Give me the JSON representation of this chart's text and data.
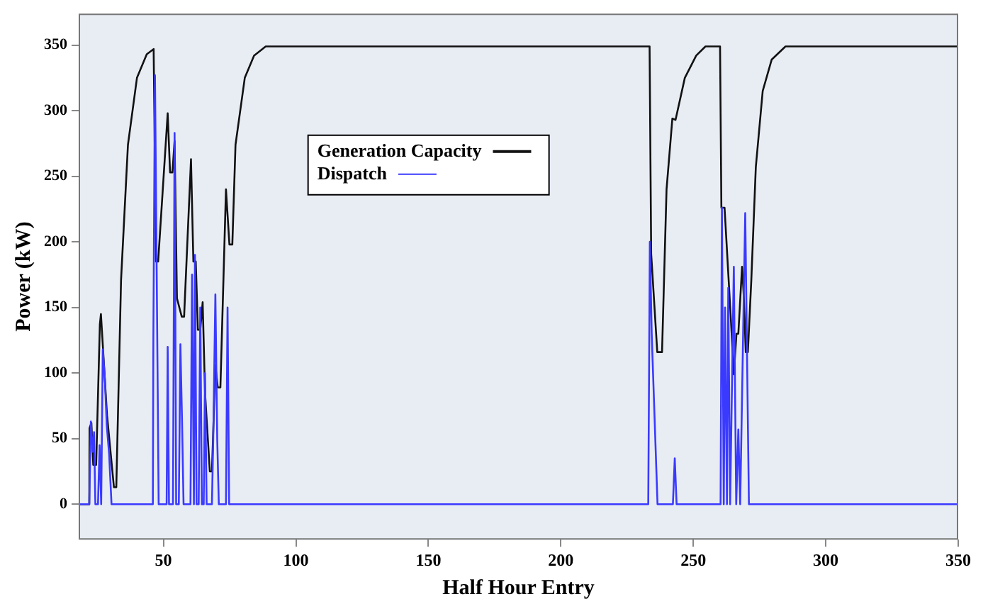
{
  "chart_data": {
    "type": "line",
    "xlabel": "Half Hour Entry",
    "ylabel": "Power (kW)",
    "xlim": [
      18,
      350
    ],
    "xticks": [
      50,
      100,
      150,
      200,
      250,
      300,
      350
    ],
    "ylim": [
      -27,
      374
    ],
    "yticks": [
      0,
      50,
      100,
      150,
      200,
      250,
      300,
      350
    ],
    "grid": false,
    "legend": "top left",
    "marker": "none",
    "line_style": "solid",
    "series": [
      {
        "name": "Generation Capacity",
        "color": "#111111",
        "x": [
          18,
          22,
          22.1,
          22.8,
          23.5,
          24.6,
          26,
          26.4,
          28.7,
          31.3,
          32.2,
          34,
          36.6,
          40,
          43.7,
          46.3,
          47.2,
          48,
          51.6,
          52.5,
          53.4,
          54.2,
          55.1,
          56.9,
          57.8,
          60.4,
          61.3,
          62.2,
          63,
          63.9,
          64.8,
          65.7,
          67.5,
          68.3,
          69.6,
          70.5,
          71.5,
          73.6,
          74.9,
          76,
          77.2,
          80.7,
          84.2,
          88.6,
          233.5,
          234.1,
          236.4,
          238.2,
          239.9,
          242.1,
          243.3,
          246.8,
          251.1,
          254.6,
          260.1,
          260.6,
          261.8,
          264.1,
          265.3,
          266.3,
          267,
          268.4,
          269.1,
          269.8,
          270.6,
          271.9,
          273.6,
          276.2,
          279.6,
          284.8,
          350
        ],
        "values": [
          0,
          0,
          58,
          62,
          30,
          30,
          137,
          145,
          68,
          13,
          13,
          171,
          274,
          325,
          343,
          347,
          185,
          185,
          298,
          253,
          253,
          277,
          157,
          143,
          143,
          263,
          185,
          185,
          133,
          133,
          154,
          85,
          25,
          25,
          106,
          89,
          89,
          240,
          198,
          198,
          274,
          325,
          342,
          349,
          349,
          191,
          116,
          116,
          240,
          294,
          293,
          325,
          342,
          349,
          349,
          226,
          226,
          144,
          99,
          130,
          130,
          181,
          157,
          116,
          116,
          171,
          257,
          315,
          339,
          349,
          349
        ]
      },
      {
        "name": "Dispatch",
        "color": "#3a3aff",
        "x": [
          18,
          22,
          22.6,
          23.3,
          23.8,
          24.3,
          25.3,
          25.9,
          26.5,
          27.1,
          27.9,
          28.6,
          29.5,
          30.4,
          46,
          46.2,
          46.8,
          47.4,
          48.2,
          51.2,
          51.6,
          52.1,
          53.6,
          54.2,
          54.8,
          55.8,
          56.4,
          57,
          57.6,
          60.2,
          60.8,
          61.5,
          61.9,
          62.5,
          63.3,
          63.9,
          64.5,
          65.2,
          65.7,
          66.3,
          68.3,
          68.8,
          69.6,
          70.3,
          70.9,
          73.6,
          74.2,
          74.8,
          233,
          233.6,
          234.3,
          236.5,
          242.3,
          243,
          243.7,
          260.3,
          260.8,
          261.5,
          262,
          262.7,
          263.2,
          263.9,
          265.3,
          266.2,
          267,
          267.7,
          269.6,
          271,
          350
        ],
        "values": [
          0,
          0,
          63,
          40,
          55,
          0,
          0,
          45,
          0,
          118,
          95,
          60,
          38,
          0,
          0,
          128,
          327,
          190,
          0,
          0,
          120,
          0,
          0,
          283,
          0,
          0,
          122,
          65,
          0,
          0,
          175,
          0,
          190,
          0,
          0,
          150,
          0,
          0,
          100,
          0,
          0,
          50,
          160,
          50,
          0,
          0,
          150,
          0,
          0,
          200,
          130,
          0,
          0,
          35,
          0,
          0,
          226,
          0,
          150,
          0,
          165,
          0,
          181,
          0,
          57,
          0,
          222,
          0,
          0
        ]
      }
    ]
  }
}
